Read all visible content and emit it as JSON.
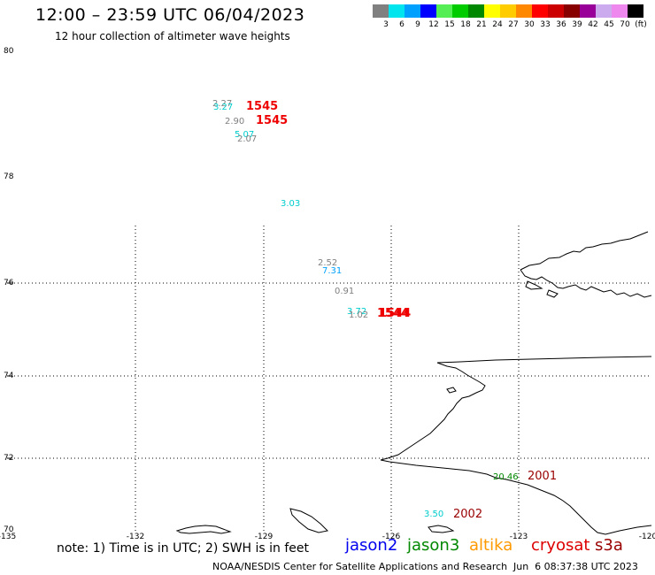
{
  "header": {
    "title": "12:00 – 23:59 UTC 06/04/2023",
    "subtitle": "12 hour collection of altimeter wave heights"
  },
  "scale": {
    "unit": "(ft)",
    "bins": [
      {
        "label": "3",
        "color": "#808080"
      },
      {
        "label": "6",
        "color": "#00e5ee"
      },
      {
        "label": "9",
        "color": "#00a0ff"
      },
      {
        "label": "12",
        "color": "#0000ff"
      },
      {
        "label": "15",
        "color": "#55ee55"
      },
      {
        "label": "18",
        "color": "#00cc00"
      },
      {
        "label": "21",
        "color": "#008800"
      },
      {
        "label": "24",
        "color": "#ffff00"
      },
      {
        "label": "27",
        "color": "#ffcc00"
      },
      {
        "label": "30",
        "color": "#ff8800"
      },
      {
        "label": "33",
        "color": "#ff0000"
      },
      {
        "label": "36",
        "color": "#cc0000"
      },
      {
        "label": "39",
        "color": "#880000"
      },
      {
        "label": "42",
        "color": "#990099"
      },
      {
        "label": "45",
        "color": "#ccaaee"
      },
      {
        "label": "70",
        "color": "#ee88ee"
      },
      {
        "label": "",
        "color": "#000000"
      }
    ]
  },
  "map": {
    "lat_labels": [
      "80",
      "78",
      "76",
      "74",
      "72",
      "70"
    ],
    "lon_labels": [
      "-135",
      "-132",
      "-129",
      "-126",
      "-123",
      "-120"
    ]
  },
  "observations": [
    {
      "value": "2.27",
      "color": "#808080"
    },
    {
      "value": "3.27",
      "color": "#00cccc"
    },
    {
      "value": "1545",
      "color": "#ee0000"
    },
    {
      "value": "2.90",
      "color": "#808080"
    },
    {
      "value": "1545",
      "color": "#ee0000"
    },
    {
      "value": "5.07",
      "color": "#00cccc"
    },
    {
      "value": "2.07",
      "color": "#808080"
    },
    {
      "value": "3.03",
      "color": "#00cccc"
    },
    {
      "value": "2.52",
      "color": "#808080"
    },
    {
      "value": "7.31",
      "color": "#00a0ff"
    },
    {
      "value": "0.91",
      "color": "#808080"
    },
    {
      "value": "3.72",
      "color": "#00cccc"
    },
    {
      "value": "1.02",
      "color": "#808080"
    },
    {
      "value": "1544",
      "color": "#ee0000"
    },
    {
      "value": "1544",
      "color": "#ee0000"
    },
    {
      "value": "20.46",
      "color": "#008800"
    },
    {
      "value": "2001",
      "color": "#990000"
    },
    {
      "value": "3.50",
      "color": "#00cccc"
    },
    {
      "value": "2002",
      "color": "#990000"
    }
  ],
  "footer": {
    "note": "note: 1) Time is in UTC; 2) SWH is in feet",
    "satellites": [
      {
        "name": "jason2",
        "color": "#0000ee"
      },
      {
        "name": "jason3",
        "color": "#008800"
      },
      {
        "name": "altika",
        "color": "#ff9900"
      },
      {
        "name": "cryosat",
        "color": "#dd0000"
      },
      {
        "name": "s3a",
        "color": "#990000"
      }
    ],
    "credit": "NOAA/NESDIS Center for Satellite Applications and Research",
    "timestamp": "Jun  6 08:37:38 UTC 2023"
  }
}
